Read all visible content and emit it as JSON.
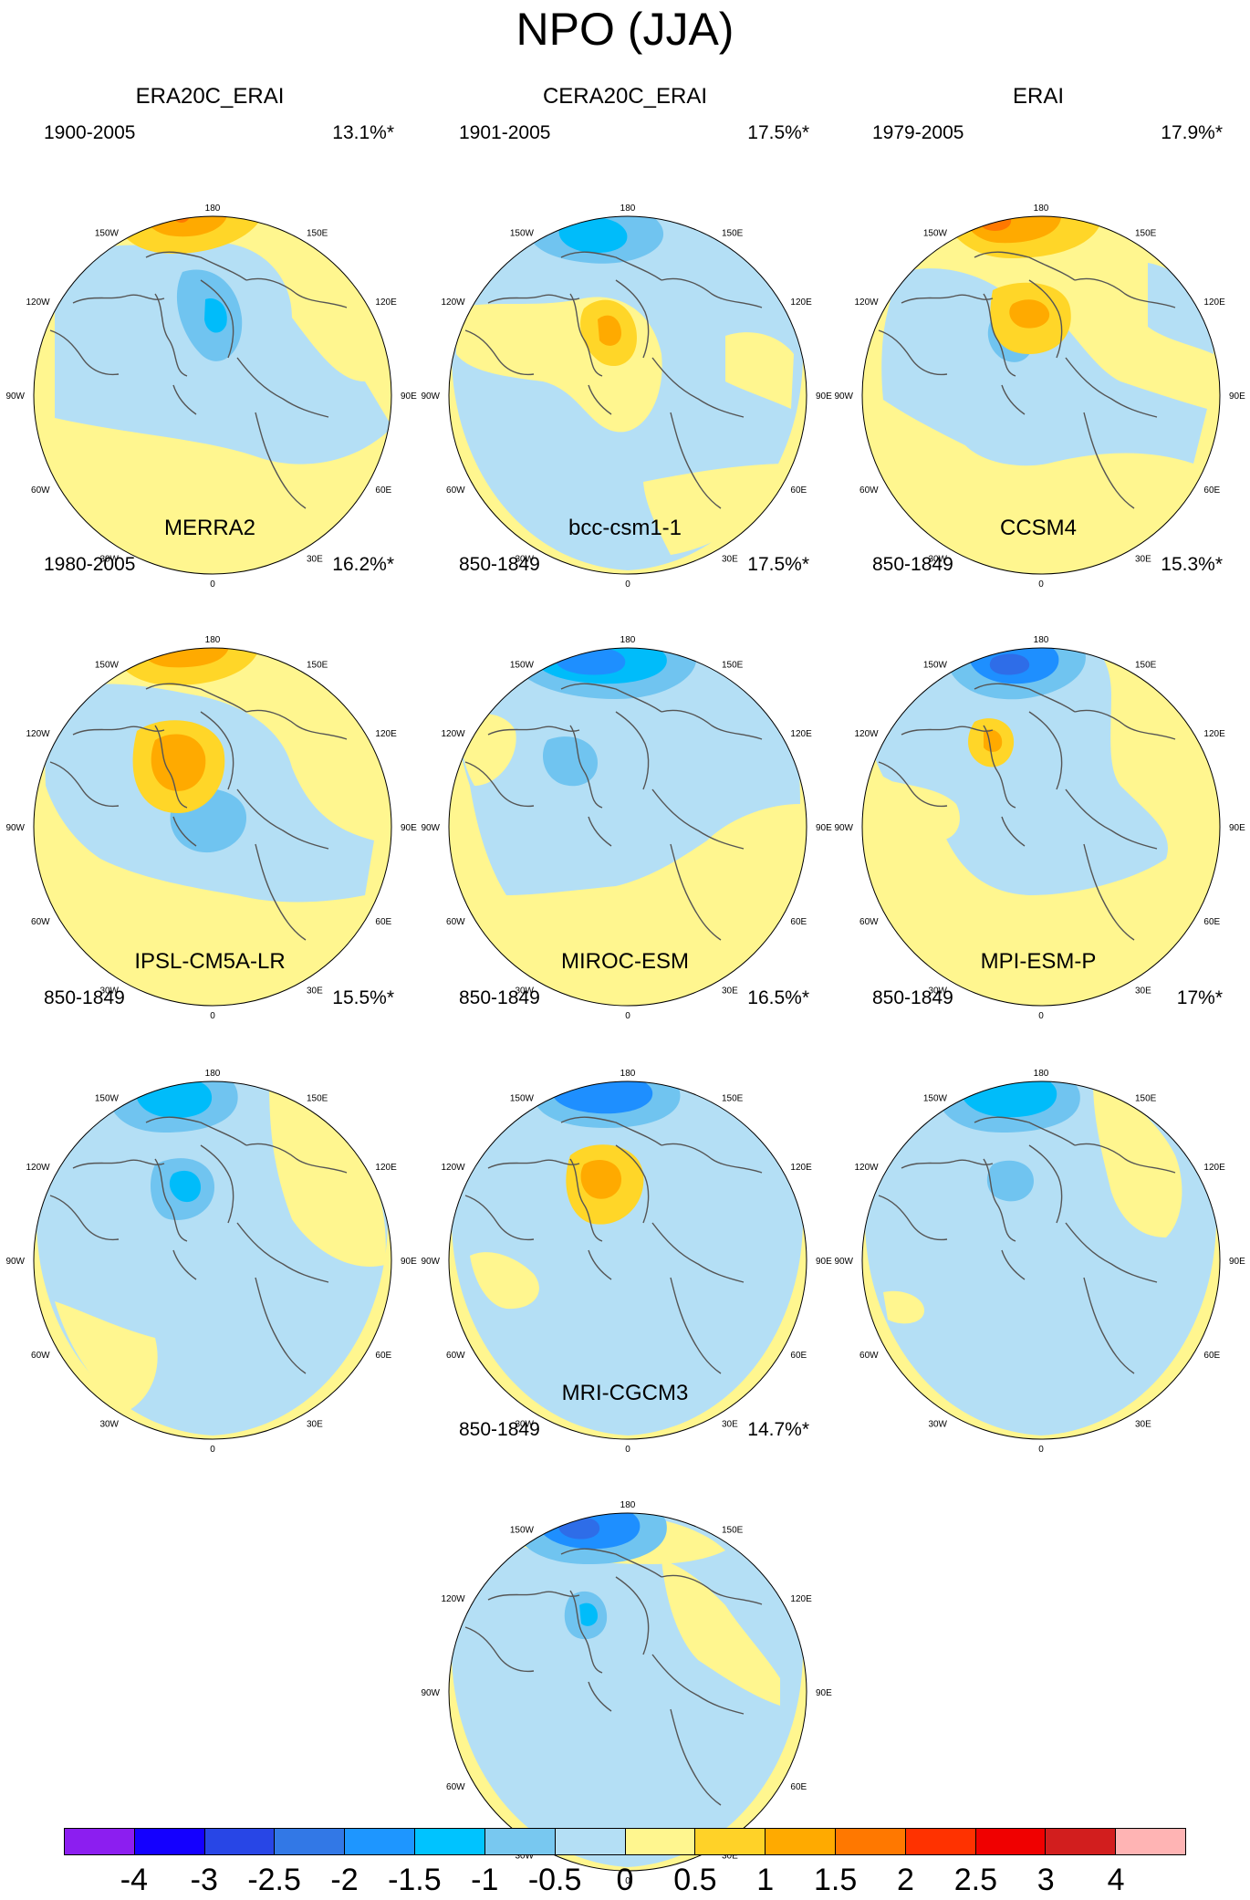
{
  "title": "NPO (JJA)",
  "colors": {
    "yellow": "#fff68f",
    "gold": "#ffd628",
    "orange": "#ffaa00",
    "dark_orange": "#ff7800",
    "light_blue": "#b4dff5",
    "mid_blue": "#70c4f0",
    "cyan": "#00bcfa",
    "blue": "#1e8fff",
    "dark_blue": "#2e6de8",
    "coast": "#555555"
  },
  "longitude_labels": [
    "180",
    "150E",
    "120E",
    "90E",
    "60E",
    "30E",
    "0",
    "30W",
    "60W",
    "90W",
    "120W",
    "150W"
  ],
  "panels": [
    {
      "name": "ERA20C_ERAI",
      "period": "1900-2005",
      "variance": "13.1%*"
    },
    {
      "name": "CERA20C_ERAI",
      "period": "1901-2005",
      "variance": "17.5%*"
    },
    {
      "name": "ERAI",
      "period": "1979-2005",
      "variance": "17.9%*"
    },
    {
      "name": "MERRA2",
      "period": "1980-2005",
      "variance": "16.2%*"
    },
    {
      "name": "bcc-csm1-1",
      "period": "850-1849",
      "variance": "17.5%*"
    },
    {
      "name": "CCSM4",
      "period": "850-1849",
      "variance": "15.3%*"
    },
    {
      "name": "IPSL-CM5A-LR",
      "period": "850-1849",
      "variance": "15.5%*"
    },
    {
      "name": "MIROC-ESM",
      "period": "850-1849",
      "variance": "16.5%*"
    },
    {
      "name": "MPI-ESM-P",
      "period": "850-1849",
      "variance": "17%*"
    },
    {
      "name": "MRI-CGCM3",
      "period": "850-1849",
      "variance": "14.7%*"
    }
  ],
  "colorbar": {
    "colors": [
      "#8c1ef0",
      "#1400ff",
      "#2846e6",
      "#3278e6",
      "#1e96ff",
      "#00c3ff",
      "#78c8f0",
      "#b4dff5",
      "#fff68f",
      "#ffd228",
      "#ffaa00",
      "#ff7800",
      "#ff3200",
      "#f00000",
      "#d21e1e",
      "#ffb4b4"
    ],
    "labels": [
      "-4",
      "-3",
      "-2.5",
      "-2",
      "-1.5",
      "-1",
      "-0.5",
      "0",
      "0.5",
      "1",
      "1.5",
      "2",
      "2.5",
      "3",
      "4"
    ]
  }
}
